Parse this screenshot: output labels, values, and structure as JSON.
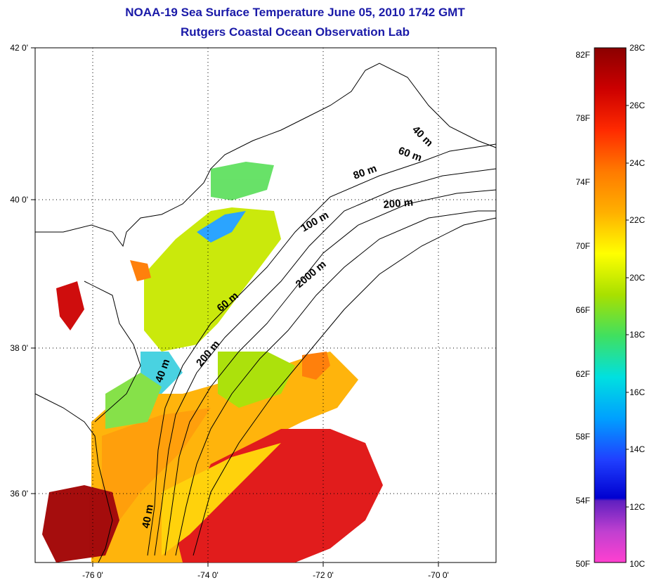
{
  "title": {
    "line1": "NOAA-19 Sea Surface Temperature June 05, 2010 1742 GMT",
    "line2": "Rutgers Coastal Ocean Observation Lab"
  },
  "map": {
    "lat_labels": [
      "42 0'",
      "40 0'",
      "38 0'",
      "36 0'"
    ],
    "lon_labels": [
      "-76 0'",
      "-74 0'",
      "-72 0'",
      "-70 0'"
    ],
    "contour_labels": [
      "40 m",
      "60 m",
      "80 m",
      "200 m",
      "100 m",
      "2000 m",
      "60 m",
      "200 m",
      "40 m",
      "40 m"
    ]
  },
  "colorbar": {
    "fahrenheit_labels": [
      "82F",
      "78F",
      "74F",
      "70F",
      "66F",
      "62F",
      "58F",
      "54F",
      "50F"
    ],
    "celsius_labels": [
      "28C",
      "26C",
      "24C",
      "22C",
      "20C",
      "18C",
      "16C",
      "14C",
      "12C",
      "10C"
    ],
    "colors": [
      "#8b0000",
      "#cc0000",
      "#ff2a00",
      "#ff7a00",
      "#ffb000",
      "#ffff00",
      "#a8e000",
      "#40e060",
      "#00e0e0",
      "#00a0ff",
      "#2040ff",
      "#0000d0",
      "#6020c0",
      "#c040d0",
      "#ff40d0"
    ]
  }
}
